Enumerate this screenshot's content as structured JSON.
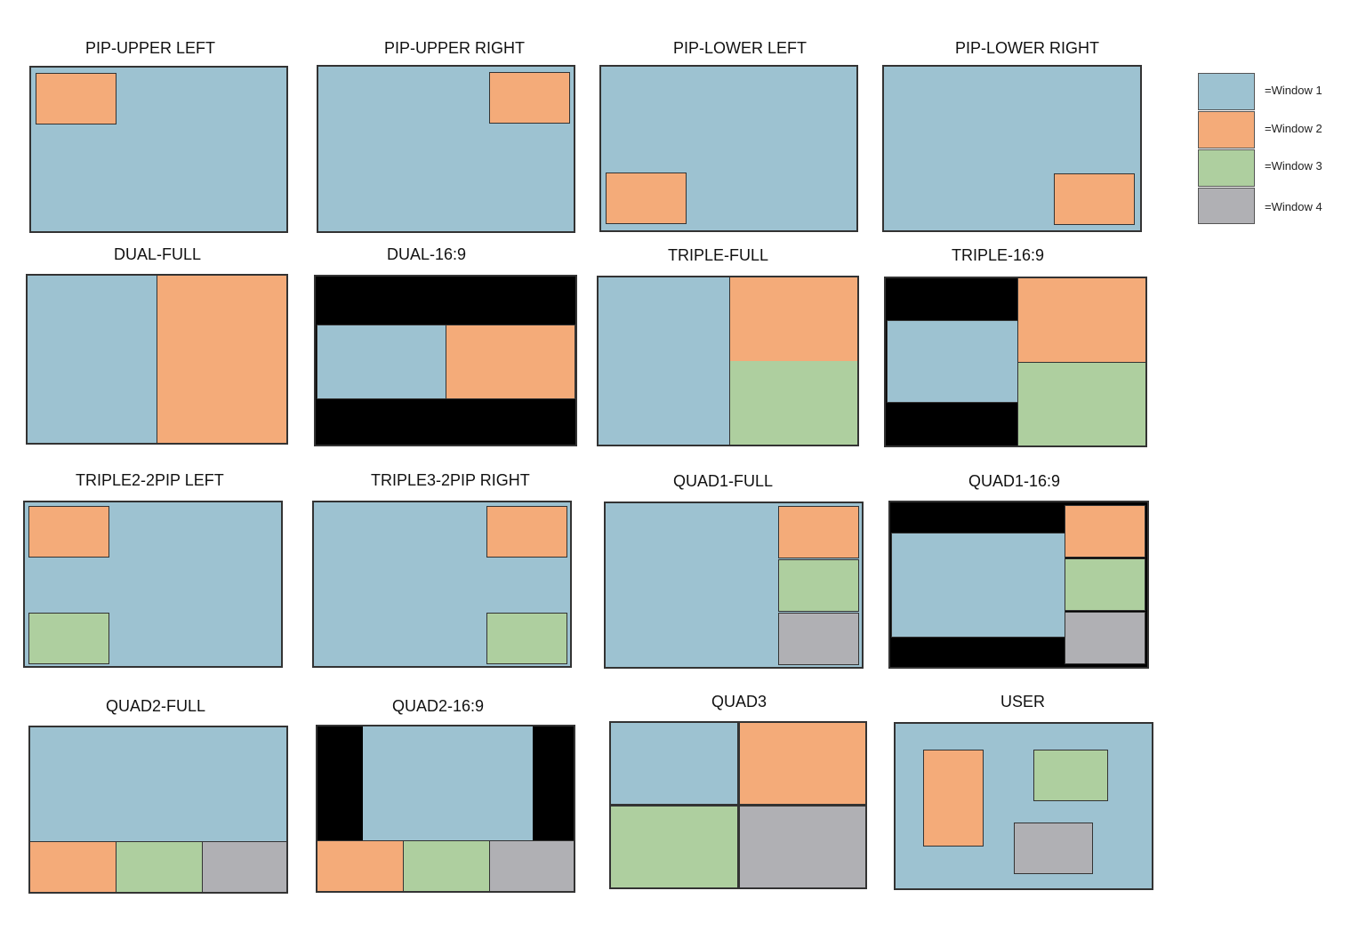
{
  "colors": {
    "window1": "#9dc2d1",
    "window2": "#f4ab79",
    "window3": "#aecf9f",
    "window4": "#b0b0b4",
    "letterbox": "#000000"
  },
  "layouts": {
    "pip_upper_left": "PIP-UPPER LEFT",
    "pip_upper_right": "PIP-UPPER RIGHT",
    "pip_lower_left": "PIP-LOWER LEFT",
    "pip_lower_right": "PIP-LOWER RIGHT",
    "dual_full": "DUAL-FULL",
    "dual_169": "DUAL-16:9",
    "triple_full": "TRIPLE-FULL",
    "triple_169": "TRIPLE-16:9",
    "triple2_2pip_left": "TRIPLE2-2PIP LEFT",
    "triple3_2pip_right": "TRIPLE3-2PIP RIGHT",
    "quad1_full": "QUAD1-FULL",
    "quad1_169": "QUAD1-16:9",
    "quad2_full": "QUAD2-FULL",
    "quad2_169": "QUAD2-16:9",
    "quad3": "QUAD3",
    "user": "USER"
  },
  "legend": {
    "window1": "=Window 1",
    "window2": "=Window 2",
    "window3": "=Window 3",
    "window4": "=Window 4"
  }
}
